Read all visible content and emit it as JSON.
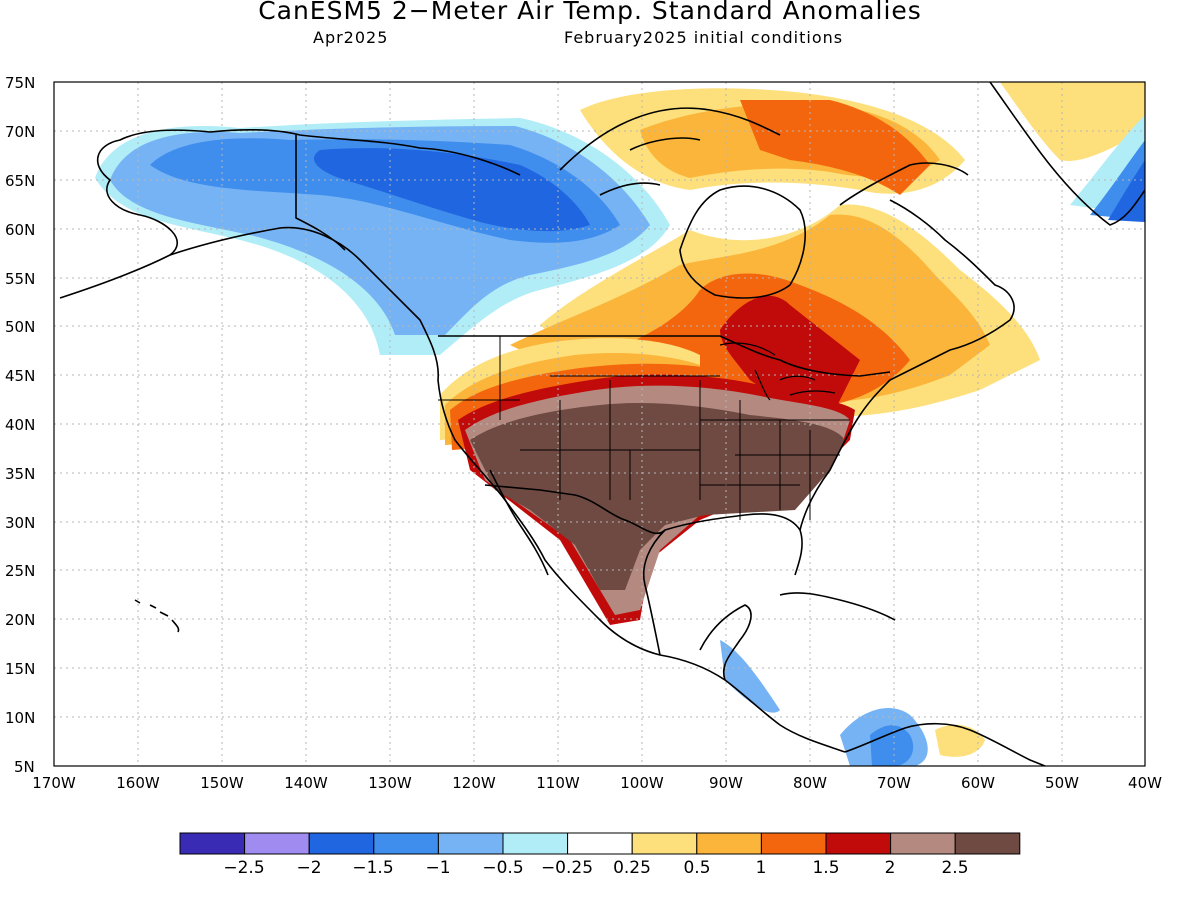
{
  "title": "CanESM5 2−Meter Air Temp. Standard Anomalies",
  "subtitle_left": "Apr2025",
  "subtitle_right": "February2025 initial conditions",
  "lat_labels": [
    "75N",
    "70N",
    "65N",
    "60N",
    "55N",
    "50N",
    "45N",
    "40N",
    "35N",
    "30N",
    "25N",
    "20N",
    "15N",
    "10N",
    "5N"
  ],
  "lon_labels": [
    "170W",
    "160W",
    "150W",
    "140W",
    "130W",
    "120W",
    "110W",
    "100W",
    "90W",
    "80W",
    "70W",
    "60W",
    "50W",
    "40W"
  ],
  "colorbar": {
    "labels": [
      "−2.5",
      "−2",
      "−1.5",
      "−1",
      "−0.5",
      "−0.25",
      "0.25",
      "0.5",
      "1",
      "1.5",
      "2",
      "2.5"
    ],
    "colors": [
      "#3a2bb5",
      "#a08cf0",
      "#1f66e0",
      "#3f8ded",
      "#76b3f4",
      "#b1edf7",
      "#ffffff",
      "#fde07c",
      "#fbb53b",
      "#f4660e",
      "#c10a0a",
      "#b48a80",
      "#6f4a42"
    ]
  }
}
